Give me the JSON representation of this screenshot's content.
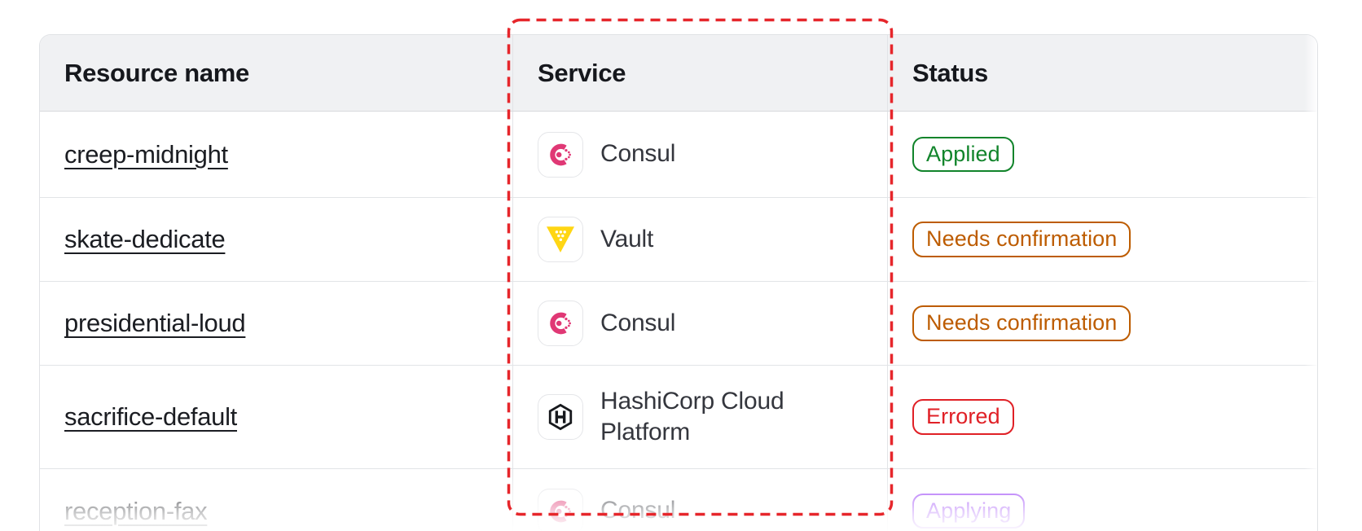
{
  "table": {
    "columns": [
      "Resource name",
      "Service",
      "Status"
    ],
    "rows": [
      {
        "name": "creep-midnight",
        "service": "Consul",
        "service_icon": "consul-icon",
        "status": "Applied",
        "status_variant": "success"
      },
      {
        "name": "skate-dedicate",
        "service": "Vault",
        "service_icon": "vault-icon",
        "status": "Needs confirmation",
        "status_variant": "warning"
      },
      {
        "name": "presidential-loud",
        "service": "Consul",
        "service_icon": "consul-icon",
        "status": "Needs confirmation",
        "status_variant": "warning"
      },
      {
        "name": "sacrifice-default",
        "service": "HashiCorp Cloud Platform",
        "service_icon": "hashicorp-icon",
        "status": "Errored",
        "status_variant": "critical"
      },
      {
        "name": "reception-fax",
        "service": "Consul",
        "service_icon": "consul-icon",
        "status": "Applying",
        "status_variant": "progress"
      }
    ]
  },
  "colors": {
    "success": "#11842b",
    "warning": "#bd5c00",
    "critical": "#e02026",
    "progress": "#9b45f7",
    "consul_pink": "#e03875",
    "vault_yellow": "#ffd614",
    "hashicorp_black": "#17191d",
    "annotation_red": "#e6262b",
    "header_bg": "#f0f1f3"
  },
  "annotation": {
    "type": "dashed-rectangle",
    "target": "service-column"
  }
}
